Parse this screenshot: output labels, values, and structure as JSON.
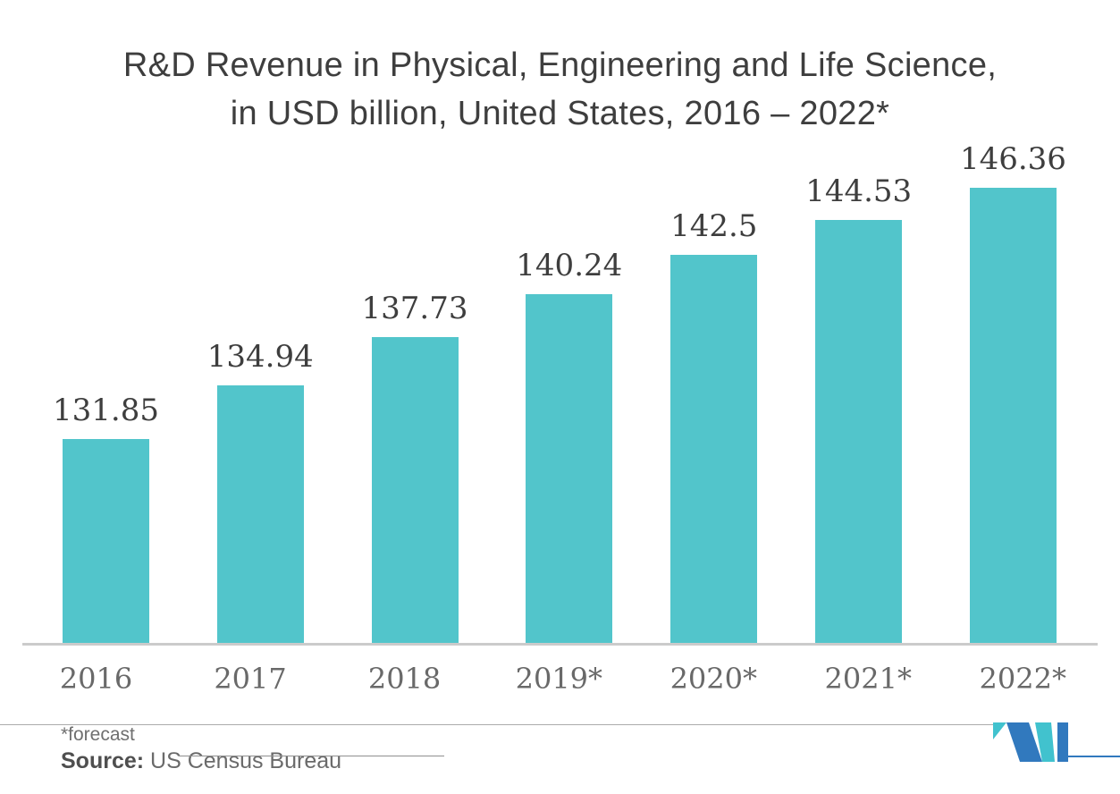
{
  "title": {
    "line1": "R&D Revenue in Physical, Engineering and Life Science,",
    "line2": "in USD billion, United States, 2016 – 2022*"
  },
  "chart_data": {
    "type": "bar",
    "categories": [
      "2016",
      "2017",
      "2018",
      "2019*",
      "2020*",
      "2021*",
      "2022*"
    ],
    "values": [
      131.85,
      134.94,
      137.73,
      140.24,
      142.5,
      144.53,
      146.36
    ],
    "title": "R&D Revenue in Physical, Engineering and Life Science, in USD billion, United States, 2016 – 2022*",
    "xlabel": "",
    "ylabel": "",
    "ylim": [
      120,
      150
    ],
    "grid": false,
    "legend": false,
    "value_labels_shown": true,
    "bar_color": "#52c5cb"
  },
  "footer": {
    "forecast_note": "*forecast",
    "source_label": "Source:",
    "source_value": "US Census Bureau"
  },
  "logo": {
    "name": "mordor-intelligence-mark",
    "teal": "#41c2ce",
    "blue": "#3179be"
  },
  "colors": {
    "background": "#ffffff",
    "bar": "#52c5cb",
    "title_text": "#3e3e3e",
    "value_text": "#3e3e3e",
    "year_text": "#696969",
    "axis_line": "#cbcbcb",
    "footer_text": "#6a6a6a"
  }
}
